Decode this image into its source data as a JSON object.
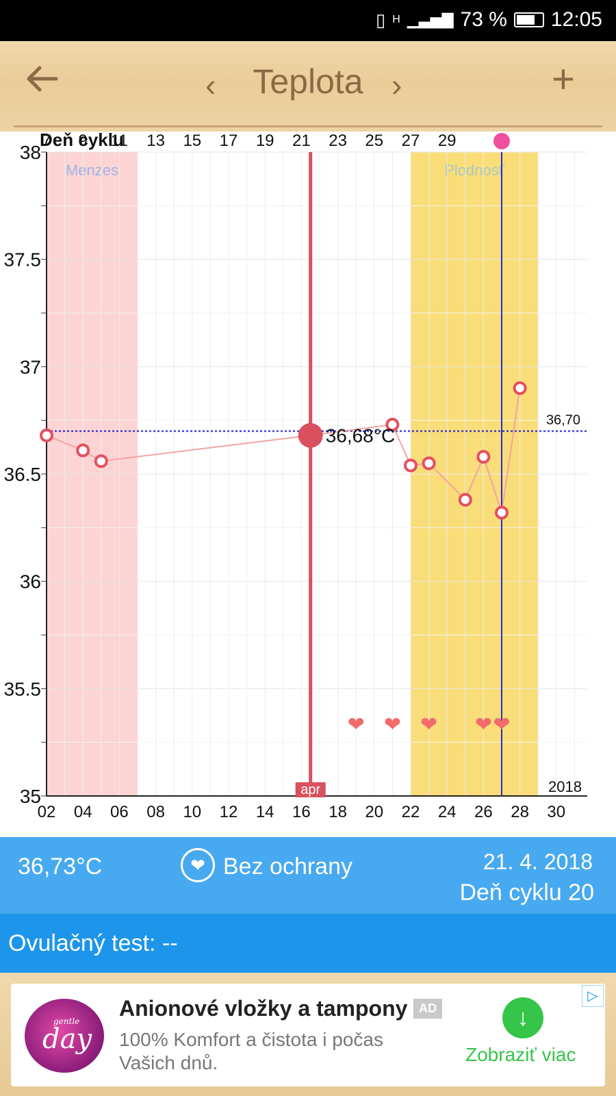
{
  "status": {
    "signal_label": "H",
    "battery": "73 %",
    "time": "12:05"
  },
  "toolbar": {
    "back_icon": "arrow-left-icon",
    "prev_label": "‹",
    "title": "Teplota",
    "next_label": "›",
    "add_label": "+"
  },
  "chart_data": {
    "type": "line",
    "title": "",
    "ylabel": "",
    "xlabel": "",
    "ylim": [
      35,
      38
    ],
    "yticks": [
      "38",
      "37.5",
      "37",
      "36.5",
      "36",
      "35.5",
      "35"
    ],
    "top_axis_label": "Deň cyklu",
    "top_ticks": [
      "7",
      "9",
      "11",
      "13",
      "15",
      "17",
      "19",
      "21",
      "23",
      "25",
      "27",
      "29"
    ],
    "bottom_ticks": [
      "02",
      "04",
      "06",
      "08",
      "10",
      "12",
      "14",
      "16",
      "18",
      "20",
      "22",
      "24",
      "26",
      "28",
      "30"
    ],
    "bands": [
      {
        "label": "Menzes",
        "from": 2,
        "to": 7,
        "color": "#fdd4d4",
        "label_color": "#9fb4e6"
      },
      {
        "label": "Plodnosť",
        "from": 22,
        "to": 29,
        "color": "#f9dd78",
        "label_color": "#a9c8c8"
      }
    ],
    "series": [
      {
        "x": [
          2,
          4,
          5,
          16.5,
          21,
          22,
          23,
          25,
          26,
          27,
          28
        ],
        "y": [
          36.68,
          36.61,
          36.56,
          36.68,
          36.73,
          36.54,
          36.55,
          36.38,
          36.58,
          36.32,
          36.9
        ],
        "color": "#f4a3a3"
      }
    ],
    "coverline": {
      "value": 36.7,
      "label": "36,70",
      "color": "#1a1ad0"
    },
    "selected": {
      "x": 16.5,
      "y": 36.68,
      "label": "36,68°C",
      "month_label": "apr",
      "color": "#d9505e"
    },
    "today_line": {
      "x": 27,
      "color": "#2a2ac8"
    },
    "hearts_y": 35.34,
    "hearts": [
      19,
      21,
      23,
      26,
      27
    ],
    "year_label": "2018"
  },
  "info": {
    "temperature": "36,73°C",
    "protection": "Bez ochrany",
    "date": "21. 4. 2018",
    "cycle_day": "Deň cyklu 20"
  },
  "ovulation": {
    "text": "Ovulačný test: --"
  },
  "ad": {
    "title": "Anionové vložky a tampony",
    "badge": "AD",
    "text_line1": "100% Komfort a čistota i počas",
    "text_line2": "Vašich dnů.",
    "cta": "Zobraziť viac",
    "logo_small": "gentle",
    "logo_main": "day",
    "accent": "#35c548"
  }
}
